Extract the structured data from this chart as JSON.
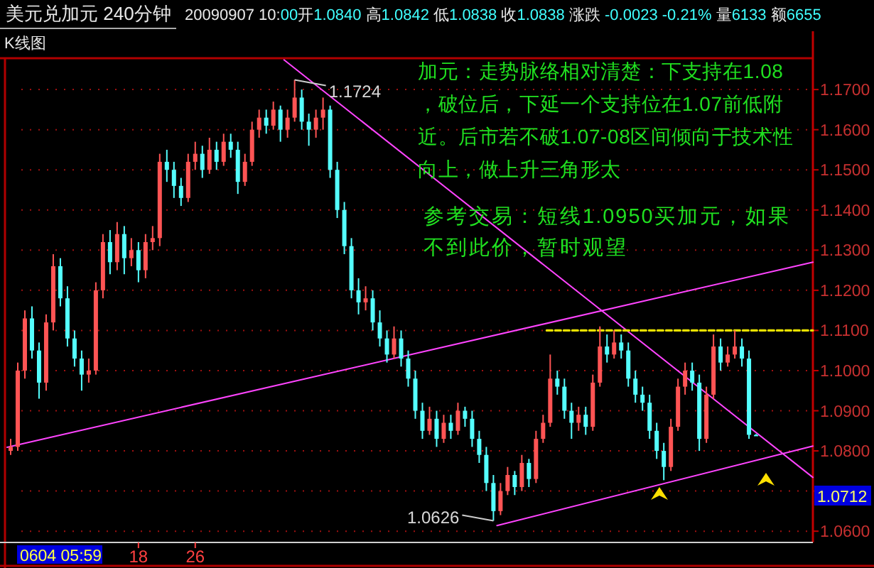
{
  "chart_data": {
    "type": "candlestick",
    "title": "美元兑加元 240分钟",
    "subtitle": "20090907 10:00开1.0840 高1.0842 低1.0838 收1.0838 涨跌 -0.0023 -0.21% 量6133 额6655",
    "annotations": [
      "K线图",
      "加元：走势脉络相对清楚：下支持在1.08，破位后，下延一个支持位在1.07前低附近。后市若不破1.07-08区间倾向于技术性向上，做上升三角形太",
      "参考交易：短线1.0950买加元，如果不到此价，暂时观望",
      "1.0712",
      "0604 05:59",
      {
        "text": "1.1724",
        "x": 40,
        "y": 1.1724
      },
      {
        "text": "1.0626",
        "x": 68,
        "y": 1.0626
      }
    ],
    "x": [
      0,
      1,
      2,
      3,
      4,
      5,
      6,
      7,
      8,
      9,
      10,
      11,
      12,
      13,
      14,
      15,
      16,
      17,
      18,
      19,
      20,
      21,
      22,
      23,
      24,
      25,
      26,
      27,
      28,
      29,
      30,
      31,
      32,
      33,
      34,
      35,
      36,
      37,
      38,
      39,
      40,
      41,
      42,
      43,
      44,
      45,
      46,
      47,
      48,
      49,
      50,
      51,
      52,
      53,
      54,
      55,
      56,
      57,
      58,
      59,
      60,
      61,
      62,
      63,
      64,
      65,
      66,
      67,
      68,
      69,
      70,
      71,
      72,
      73,
      74,
      75,
      76,
      77,
      78,
      79,
      80,
      81,
      82,
      83,
      84,
      85,
      86,
      87,
      88,
      89,
      90,
      91,
      92,
      93,
      94,
      95,
      96,
      97,
      98,
      99,
      100,
      101,
      102,
      103,
      104,
      105
    ],
    "ohlc": [
      [
        1.08,
        1.083,
        1.079,
        1.081
      ],
      [
        1.081,
        1.102,
        1.08,
        1.1
      ],
      [
        1.1,
        1.115,
        1.098,
        1.113
      ],
      [
        1.113,
        1.116,
        1.103,
        1.105
      ],
      [
        1.105,
        1.107,
        1.093,
        1.097
      ],
      [
        1.097,
        1.114,
        1.095,
        1.112
      ],
      [
        1.112,
        1.129,
        1.11,
        1.126
      ],
      [
        1.126,
        1.128,
        1.116,
        1.118
      ],
      [
        1.118,
        1.121,
        1.106,
        1.108
      ],
      [
        1.108,
        1.11,
        1.101,
        1.103
      ],
      [
        1.103,
        1.105,
        1.095,
        1.099
      ],
      [
        1.099,
        1.103,
        1.097,
        1.1
      ],
      [
        1.1,
        1.122,
        1.099,
        1.12
      ],
      [
        1.12,
        1.134,
        1.118,
        1.132
      ],
      [
        1.132,
        1.135,
        1.124,
        1.127
      ],
      [
        1.127,
        1.137,
        1.125,
        1.134
      ],
      [
        1.134,
        1.136,
        1.124,
        1.128
      ],
      [
        1.128,
        1.133,
        1.126,
        1.13
      ],
      [
        1.13,
        1.132,
        1.122,
        1.125
      ],
      [
        1.125,
        1.134,
        1.123,
        1.132
      ],
      [
        1.132,
        1.136,
        1.13,
        1.133
      ],
      [
        1.133,
        1.154,
        1.131,
        1.152
      ],
      [
        1.152,
        1.155,
        1.147,
        1.15
      ],
      [
        1.15,
        1.152,
        1.143,
        1.146
      ],
      [
        1.146,
        1.148,
        1.141,
        1.143
      ],
      [
        1.143,
        1.154,
        1.142,
        1.152
      ],
      [
        1.152,
        1.157,
        1.15,
        1.154
      ],
      [
        1.154,
        1.156,
        1.148,
        1.15
      ],
      [
        1.15,
        1.158,
        1.149,
        1.155
      ],
      [
        1.155,
        1.157,
        1.15,
        1.152
      ],
      [
        1.152,
        1.159,
        1.151,
        1.157
      ],
      [
        1.157,
        1.159,
        1.153,
        1.155
      ],
      [
        1.155,
        1.157,
        1.144,
        1.147
      ],
      [
        1.147,
        1.154,
        1.146,
        1.152
      ],
      [
        1.152,
        1.162,
        1.151,
        1.16
      ],
      [
        1.16,
        1.165,
        1.158,
        1.163
      ],
      [
        1.163,
        1.165,
        1.159,
        1.161
      ],
      [
        1.161,
        1.167,
        1.16,
        1.165
      ],
      [
        1.165,
        1.166,
        1.157,
        1.16
      ],
      [
        1.16,
        1.165,
        1.158,
        1.163
      ],
      [
        1.163,
        1.1724,
        1.162,
        1.168
      ],
      [
        1.168,
        1.17,
        1.16,
        1.162
      ],
      [
        1.162,
        1.164,
        1.156,
        1.16
      ],
      [
        1.16,
        1.165,
        1.158,
        1.163
      ],
      [
        1.163,
        1.168,
        1.16,
        1.165
      ],
      [
        1.165,
        1.166,
        1.148,
        1.15
      ],
      [
        1.15,
        1.152,
        1.138,
        1.14
      ],
      [
        1.14,
        1.142,
        1.129,
        1.131
      ],
      [
        1.131,
        1.133,
        1.118,
        1.12
      ],
      [
        1.12,
        1.123,
        1.114,
        1.117
      ],
      [
        1.117,
        1.121,
        1.115,
        1.118
      ],
      [
        1.118,
        1.12,
        1.11,
        1.112
      ],
      [
        1.112,
        1.115,
        1.106,
        1.108
      ],
      [
        1.108,
        1.11,
        1.102,
        1.104
      ],
      [
        1.104,
        1.111,
        1.103,
        1.108
      ],
      [
        1.108,
        1.11,
        1.101,
        1.103
      ],
      [
        1.103,
        1.105,
        1.096,
        1.098
      ],
      [
        1.098,
        1.1,
        1.088,
        1.09
      ],
      [
        1.09,
        1.092,
        1.083,
        1.085
      ],
      [
        1.085,
        1.091,
        1.084,
        1.088
      ],
      [
        1.088,
        1.09,
        1.081,
        1.083
      ],
      [
        1.083,
        1.089,
        1.082,
        1.087
      ],
      [
        1.087,
        1.089,
        1.083,
        1.085
      ],
      [
        1.085,
        1.092,
        1.084,
        1.09
      ],
      [
        1.09,
        1.091,
        1.086,
        1.088
      ],
      [
        1.088,
        1.09,
        1.081,
        1.083
      ],
      [
        1.083,
        1.085,
        1.077,
        1.079
      ],
      [
        1.079,
        1.081,
        1.07,
        1.072
      ],
      [
        1.072,
        1.074,
        1.0626,
        1.065
      ],
      [
        1.065,
        1.072,
        1.064,
        1.07
      ],
      [
        1.07,
        1.076,
        1.069,
        1.074
      ],
      [
        1.074,
        1.075,
        1.069,
        1.071
      ],
      [
        1.071,
        1.079,
        1.07,
        1.077
      ],
      [
        1.077,
        1.078,
        1.071,
        1.073
      ],
      [
        1.073,
        1.085,
        1.072,
        1.083
      ],
      [
        1.083,
        1.089,
        1.082,
        1.087
      ],
      [
        1.087,
        1.104,
        1.086,
        1.098
      ],
      [
        1.098,
        1.1,
        1.094,
        1.096
      ],
      [
        1.096,
        1.098,
        1.088,
        1.09
      ],
      [
        1.09,
        1.092,
        1.083,
        1.087
      ],
      [
        1.087,
        1.091,
        1.085,
        1.089
      ],
      [
        1.089,
        1.091,
        1.084,
        1.086
      ],
      [
        1.086,
        1.099,
        1.085,
        1.097
      ],
      [
        1.097,
        1.111,
        1.096,
        1.106
      ],
      [
        1.106,
        1.109,
        1.102,
        1.104
      ],
      [
        1.104,
        1.11,
        1.103,
        1.107
      ],
      [
        1.107,
        1.109,
        1.103,
        1.105
      ],
      [
        1.105,
        1.107,
        1.096,
        1.098
      ],
      [
        1.098,
        1.1,
        1.092,
        1.094
      ],
      [
        1.094,
        1.096,
        1.09,
        1.092
      ],
      [
        1.092,
        1.094,
        1.083,
        1.085
      ],
      [
        1.085,
        1.087,
        1.078,
        1.08
      ],
      [
        1.08,
        1.082,
        1.0727,
        1.076
      ],
      [
        1.076,
        1.088,
        1.075,
        1.086
      ],
      [
        1.086,
        1.098,
        1.085,
        1.096
      ],
      [
        1.096,
        1.102,
        1.094,
        1.1
      ],
      [
        1.1,
        1.102,
        1.095,
        1.097
      ],
      [
        1.097,
        1.099,
        1.08,
        1.083
      ],
      [
        1.083,
        1.096,
        1.082,
        1.094
      ],
      [
        1.094,
        1.109,
        1.093,
        1.106
      ],
      [
        1.106,
        1.108,
        1.1,
        1.102
      ],
      [
        1.102,
        1.106,
        1.101,
        1.104
      ],
      [
        1.104,
        1.11,
        1.103,
        1.106
      ],
      [
        1.106,
        1.108,
        1.101,
        1.103
      ],
      [
        1.103,
        1.105,
        1.083,
        1.084
      ],
      [
        1.084,
        1.0842,
        1.0838,
        1.0838
      ]
    ],
    "colors": [
      "#ff5454",
      "#ff5454",
      "#ff5454",
      "#54ffff",
      "#54ffff",
      "#ff5454",
      "#ff5454",
      "#54ffff",
      "#54ffff",
      "#54ffff",
      "#54ffff",
      "#ff5454",
      "#ff5454",
      "#ff5454",
      "#54ffff",
      "#ff5454",
      "#54ffff",
      "#ff5454",
      "#54ffff",
      "#ff5454",
      "#ff5454",
      "#ff5454",
      "#54ffff",
      "#54ffff",
      "#54ffff",
      "#ff5454",
      "#ff5454",
      "#54ffff",
      "#ff5454",
      "#54ffff",
      "#ff5454",
      "#54ffff",
      "#54ffff",
      "#ff5454",
      "#ff5454",
      "#ff5454",
      "#54ffff",
      "#ff5454",
      "#54ffff",
      "#ff5454",
      "#ff5454",
      "#54ffff",
      "#54ffff",
      "#ff5454",
      "#ff5454",
      "#54ffff",
      "#54ffff",
      "#54ffff",
      "#54ffff",
      "#54ffff",
      "#ff5454",
      "#54ffff",
      "#54ffff",
      "#54ffff",
      "#ff5454",
      "#54ffff",
      "#54ffff",
      "#54ffff",
      "#54ffff",
      "#ff5454",
      "#54ffff",
      "#ff5454",
      "#54ffff",
      "#ff5454",
      "#54ffff",
      "#54ffff",
      "#54ffff",
      "#54ffff",
      "#54ffff",
      "#ff5454",
      "#ff5454",
      "#54ffff",
      "#ff5454",
      "#54ffff",
      "#ff5454",
      "#ff5454",
      "#ff5454",
      "#54ffff",
      "#54ffff",
      "#54ffff",
      "#ff5454",
      "#54ffff",
      "#ff5454",
      "#ff5454",
      "#54ffff",
      "#ff5454",
      "#54ffff",
      "#54ffff",
      "#54ffff",
      "#54ffff",
      "#54ffff",
      "#54ffff",
      "#54ffff",
      "#ff5454",
      "#ff5454",
      "#ff5454",
      "#54ffff",
      "#54ffff",
      "#ff5454",
      "#ff5454",
      "#54ffff",
      "#ff5454",
      "#ff5454",
      "#54ffff",
      "#54ffff",
      "#54ffff"
    ],
    "series": [
      {
        "type": "line",
        "color": "#ff44ff",
        "x": [
          -0.5,
          113
        ],
        "values": [
          1.0809,
          1.127
        ]
      },
      {
        "type": "line",
        "color": "#ff44ff",
        "x": [
          68.5,
          113
        ],
        "values": [
          1.0614,
          1.0812
        ]
      },
      {
        "type": "line",
        "color": "#ff44ff",
        "x": [
          38.5,
          113
        ],
        "values": [
          1.1774,
          1.0734
        ]
      },
      {
        "type": "line",
        "color": "#e8e000",
        "line_style": "dashed",
        "x": [
          75.5,
          113
        ],
        "values": [
          1.11,
          1.11
        ]
      }
    ],
    "xlim": [
      -0.5,
      113
    ],
    "xticks": [
      {
        "value": 18,
        "label": "18"
      },
      {
        "value": 26,
        "label": "26"
      }
    ],
    "ylim": [
      1.0572,
      1.1778
    ],
    "yticks": [
      {
        "value": 1.06,
        "label": "1.0600"
      },
      {
        "value": 1.07,
        "label": null
      },
      {
        "value": 1.08,
        "label": "1.0800"
      },
      {
        "value": 1.09,
        "label": "1.0900"
      },
      {
        "value": 1.1,
        "label": "1.1000"
      },
      {
        "value": 1.11,
        "label": "1.1100"
      },
      {
        "value": 1.12,
        "label": "1.1200"
      },
      {
        "value": 1.13,
        "label": "1.1300"
      },
      {
        "value": 1.14,
        "label": "1.1400"
      },
      {
        "value": 1.15,
        "label": "1.1500"
      },
      {
        "value": 1.16,
        "label": "1.1600"
      },
      {
        "value": 1.17,
        "label": "1.1700"
      }
    ],
    "grid": "y"
  }
}
